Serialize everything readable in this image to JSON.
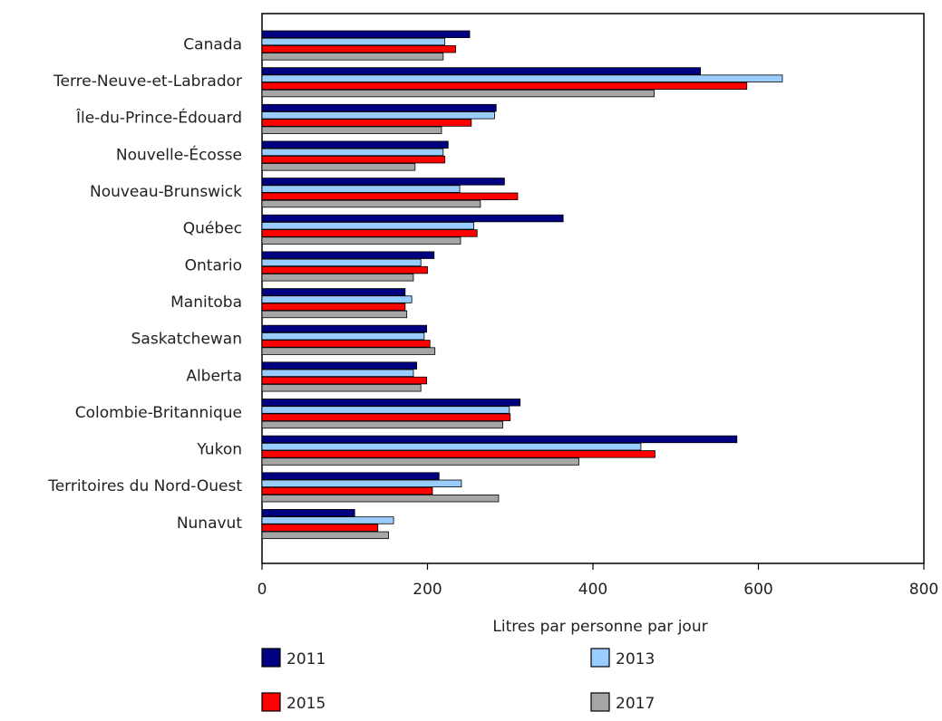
{
  "chart_data": {
    "type": "bar",
    "orientation": "horizontal",
    "categories": [
      "Canada",
      "Terre-Neuve-et-Labrador",
      "Île-du-Prince-Édouard",
      "Nouvelle-Écosse",
      "Nouveau-Brunswick",
      "Québec",
      "Ontario",
      "Manitoba",
      "Saskatchewan",
      "Alberta",
      "Colombie-Britannique",
      "Yukon",
      "Territoires du Nord-Ouest",
      "Nunavut"
    ],
    "series": [
      {
        "name": "2011",
        "color": "#000080",
        "values": [
          251,
          530,
          283,
          225,
          293,
          364,
          208,
          173,
          199,
          187,
          312,
          574,
          214,
          112
        ]
      },
      {
        "name": "2013",
        "color": "#99ccff",
        "values": [
          221,
          629,
          281,
          219,
          239,
          256,
          192,
          181,
          196,
          183,
          299,
          458,
          241,
          159
        ]
      },
      {
        "name": "2015",
        "color": "#ff0000",
        "values": [
          234,
          586,
          253,
          221,
          309,
          260,
          200,
          173,
          203,
          199,
          300,
          475,
          206,
          140
        ]
      },
      {
        "name": "2017",
        "color": "#a6a6a6",
        "values": [
          219,
          474,
          217,
          185,
          264,
          240,
          183,
          175,
          209,
          192,
          291,
          383,
          286,
          153
        ]
      }
    ],
    "xlabel": "Litres par personne par jour",
    "xlim": [
      0,
      800
    ],
    "xticks": [
      "0",
      "200",
      "400",
      "600",
      "800"
    ],
    "grid": false,
    "legend_placement": "bottom"
  }
}
